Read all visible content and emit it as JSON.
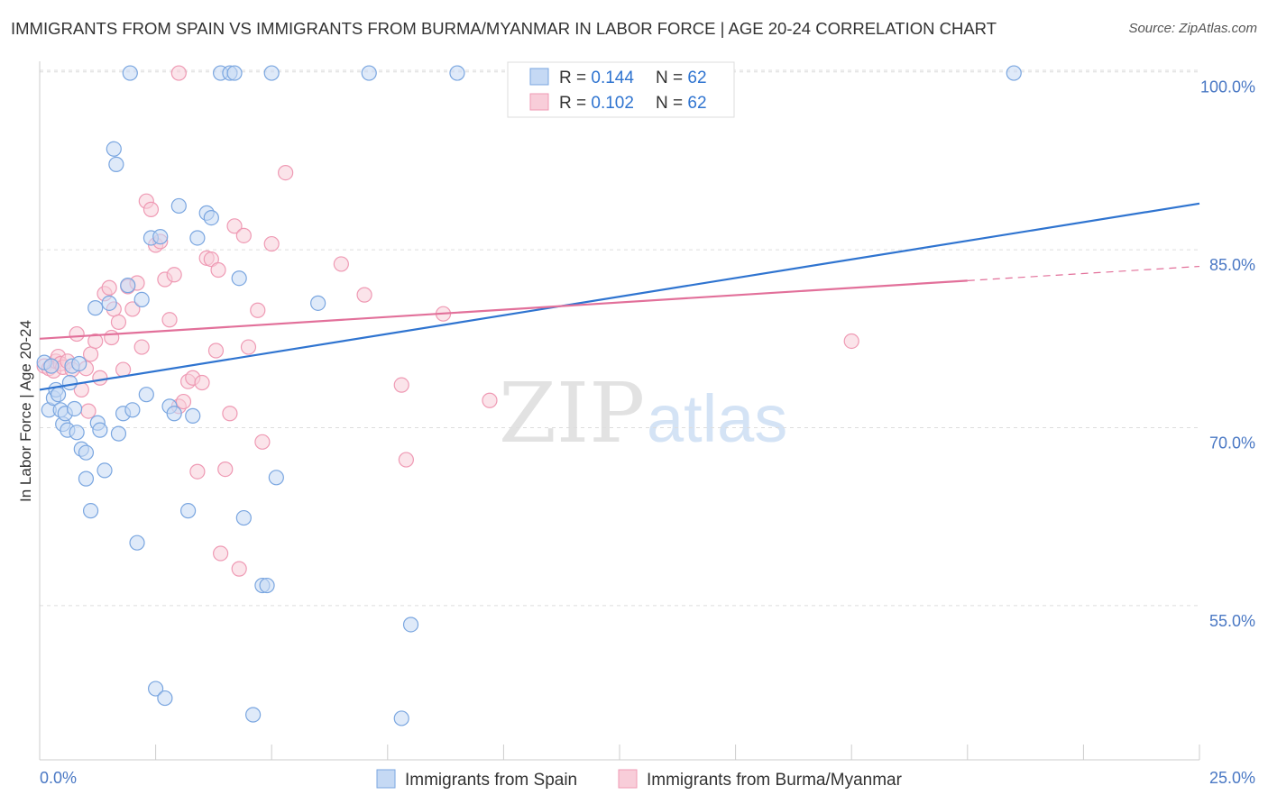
{
  "chart_title": "IMMIGRANTS FROM SPAIN VS IMMIGRANTS FROM BURMA/MYANMAR IN LABOR FORCE | AGE 20-24 CORRELATION CHART",
  "source": "Source: ZipAtlas.com",
  "watermark": {
    "zip": "ZIP",
    "atlas": "atlas"
  },
  "colors": {
    "spain": "#7aa6e0",
    "spain_fill": "#c5d9f4",
    "spain_line": "#2f74d0",
    "burma": "#ef9ab4",
    "burma_fill": "#f8cdd9",
    "burma_line": "#e2709a",
    "axis_label": "#4a78c4",
    "grid": "#dddddd"
  },
  "legend": {
    "rows": [
      {
        "r_label": "R = ",
        "r_value": "0.144",
        "n_label": "N = ",
        "n_value": "62"
      },
      {
        "r_label": "R = ",
        "r_value": "0.102",
        "n_label": "N = ",
        "n_value": "62"
      }
    ]
  },
  "chart_data": {
    "type": "scatter",
    "ylabel": "In Labor Force | Age 20-24",
    "xlabel": "",
    "x_tick_labels": [
      "0.0%",
      "25.0%"
    ],
    "y_tick_labels": [
      "100.0%",
      "85.0%",
      "70.0%",
      "55.0%"
    ],
    "y_ticks": [
      100,
      85,
      70,
      55
    ],
    "xlim": [
      0,
      25
    ],
    "ylim": [
      42,
      101.5
    ],
    "grid": true,
    "legend_position": "bottom",
    "series": [
      {
        "name": "Immigrants from Spain",
        "trend": {
          "x": [
            0,
            25
          ],
          "y": [
            73.2,
            88.9
          ]
        },
        "points": [
          [
            0.1,
            75.5
          ],
          [
            0.2,
            71.5
          ],
          [
            0.25,
            75.2
          ],
          [
            0.3,
            72.5
          ],
          [
            0.35,
            73.2
          ],
          [
            0.4,
            72.8
          ],
          [
            0.45,
            71.5
          ],
          [
            0.5,
            70.3
          ],
          [
            0.55,
            71.2
          ],
          [
            0.6,
            69.8
          ],
          [
            0.65,
            73.8
          ],
          [
            0.7,
            75.2
          ],
          [
            0.75,
            71.6
          ],
          [
            0.8,
            69.6
          ],
          [
            0.85,
            75.4
          ],
          [
            0.9,
            68.2
          ],
          [
            1.0,
            65.7
          ],
          [
            1.1,
            63.0
          ],
          [
            1.2,
            80.1
          ],
          [
            1.25,
            70.4
          ],
          [
            1.3,
            69.8
          ],
          [
            1.4,
            66.4
          ],
          [
            1.5,
            80.5
          ],
          [
            1.6,
            93.5
          ],
          [
            1.65,
            92.2
          ],
          [
            1.7,
            69.5
          ],
          [
            1.8,
            71.2
          ],
          [
            1.9,
            82.0
          ],
          [
            1.95,
            99.9
          ],
          [
            2.0,
            71.5
          ],
          [
            2.1,
            60.3
          ],
          [
            2.2,
            80.8
          ],
          [
            2.3,
            72.8
          ],
          [
            2.4,
            86.0
          ],
          [
            2.5,
            48.0
          ],
          [
            2.6,
            86.1
          ],
          [
            2.8,
            71.8
          ],
          [
            2.9,
            71.2
          ],
          [
            3.0,
            88.7
          ],
          [
            3.2,
            63.0
          ],
          [
            3.3,
            71.0
          ],
          [
            3.4,
            86.0
          ],
          [
            3.6,
            88.1
          ],
          [
            3.7,
            87.7
          ],
          [
            3.9,
            99.9
          ],
          [
            4.1,
            99.9
          ],
          [
            4.2,
            99.9
          ],
          [
            4.3,
            82.6
          ],
          [
            4.4,
            62.4
          ],
          [
            4.6,
            45.8
          ],
          [
            4.8,
            56.7
          ],
          [
            4.9,
            56.7
          ],
          [
            5.0,
            99.9
          ],
          [
            5.1,
            65.8
          ],
          [
            6.0,
            80.5
          ],
          [
            7.1,
            99.9
          ],
          [
            7.8,
            45.5
          ],
          [
            8.0,
            53.4
          ],
          [
            9.0,
            99.9
          ],
          [
            21.0,
            99.9
          ],
          [
            1.0,
            67.9
          ],
          [
            2.7,
            47.2
          ]
        ]
      },
      {
        "name": "Immigrants from Burma/Myanmar",
        "trend": {
          "x": [
            0,
            20
          ],
          "y": [
            77.5,
            82.4
          ]
        },
        "trend_dashed": {
          "x": [
            20,
            25
          ],
          "y": [
            82.4,
            83.6
          ]
        },
        "points": [
          [
            0.1,
            75.2
          ],
          [
            0.2,
            75.0
          ],
          [
            0.3,
            74.8
          ],
          [
            0.35,
            75.6
          ],
          [
            0.4,
            76.0
          ],
          [
            0.45,
            75.4
          ],
          [
            0.5,
            75.1
          ],
          [
            0.6,
            75.6
          ],
          [
            0.7,
            74.9
          ],
          [
            0.8,
            77.9
          ],
          [
            0.9,
            73.2
          ],
          [
            1.0,
            75.0
          ],
          [
            1.05,
            71.4
          ],
          [
            1.1,
            76.2
          ],
          [
            1.2,
            77.3
          ],
          [
            1.3,
            74.2
          ],
          [
            1.4,
            81.3
          ],
          [
            1.5,
            81.8
          ],
          [
            1.55,
            77.6
          ],
          [
            1.6,
            80.0
          ],
          [
            1.7,
            78.9
          ],
          [
            1.8,
            74.9
          ],
          [
            1.9,
            81.9
          ],
          [
            2.0,
            80.0
          ],
          [
            2.1,
            82.2
          ],
          [
            2.2,
            76.8
          ],
          [
            2.3,
            89.1
          ],
          [
            2.4,
            88.4
          ],
          [
            2.5,
            85.4
          ],
          [
            2.6,
            85.7
          ],
          [
            2.7,
            82.5
          ],
          [
            2.8,
            79.1
          ],
          [
            2.9,
            82.9
          ],
          [
            3.0,
            71.8
          ],
          [
            3.1,
            72.2
          ],
          [
            3.2,
            73.9
          ],
          [
            3.3,
            74.2
          ],
          [
            3.4,
            66.3
          ],
          [
            3.5,
            73.8
          ],
          [
            3.6,
            84.3
          ],
          [
            3.7,
            84.2
          ],
          [
            3.8,
            76.5
          ],
          [
            3.85,
            83.3
          ],
          [
            3.9,
            59.4
          ],
          [
            4.0,
            66.5
          ],
          [
            4.1,
            71.2
          ],
          [
            4.2,
            87.0
          ],
          [
            4.3,
            58.1
          ],
          [
            4.4,
            86.2
          ],
          [
            4.5,
            76.8
          ],
          [
            4.7,
            79.9
          ],
          [
            4.8,
            68.8
          ],
          [
            5.0,
            85.5
          ],
          [
            5.3,
            91.5
          ],
          [
            6.5,
            83.8
          ],
          [
            7.0,
            81.2
          ],
          [
            7.8,
            73.6
          ],
          [
            7.9,
            67.3
          ],
          [
            8.7,
            79.6
          ],
          [
            9.7,
            72.3
          ],
          [
            17.5,
            77.3
          ],
          [
            3.0,
            99.9
          ]
        ]
      }
    ]
  }
}
